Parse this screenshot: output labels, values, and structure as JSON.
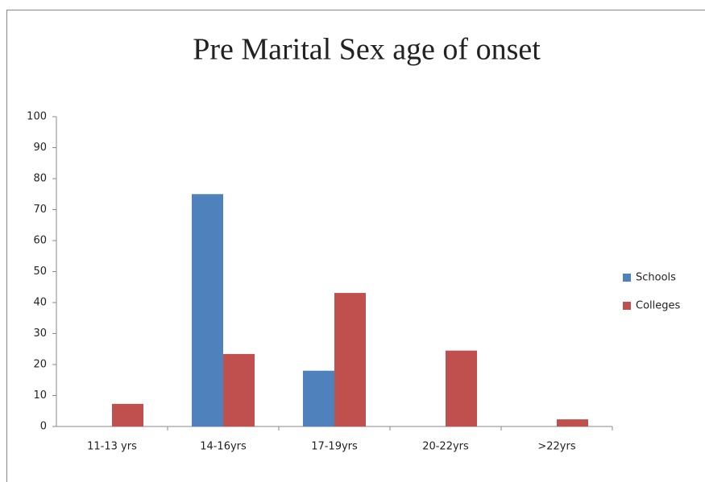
{
  "chart_data": {
    "type": "bar",
    "title": "Pre Marital Sex age of onset",
    "categories": [
      "11-13 yrs",
      "14-16yrs",
      "17-19yrs",
      "20-22yrs",
      ">22yrs"
    ],
    "series": [
      {
        "name": "Schools",
        "color": "#4f81bd",
        "values": [
          0,
          75,
          18,
          0,
          0
        ]
      },
      {
        "name": "Colleges",
        "color": "#c0504d",
        "values": [
          7.3,
          23.4,
          43.1,
          24.5,
          2.3
        ]
      }
    ],
    "ylim": [
      0,
      100
    ],
    "yticks": [
      0,
      10,
      20,
      30,
      40,
      50,
      60,
      70,
      80,
      90,
      100
    ],
    "grid": false,
    "legend": "right"
  }
}
